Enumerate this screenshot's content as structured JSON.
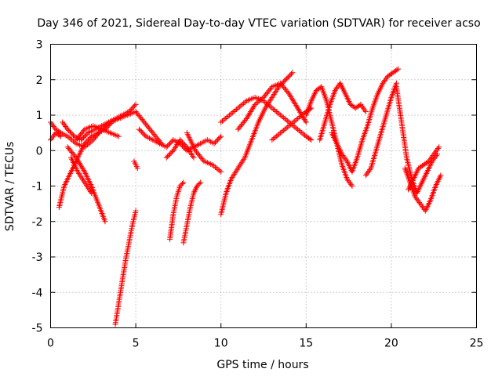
{
  "chart_data": {
    "type": "scatter",
    "title": "Day 346 of 2021, Sidereal Day-to-day VTEC variation (SDTVAR) for receiver acso",
    "xlabel": "GPS time / hours",
    "ylabel": "SDTVAR / TECUs",
    "xlim": [
      0,
      25
    ],
    "ylim": [
      -5,
      3
    ],
    "xticks": [
      "0",
      "5",
      "10",
      "15",
      "20",
      "25"
    ],
    "yticks": [
      "-5",
      "-4",
      "-3",
      "-2",
      "-1",
      "0",
      "1",
      "2",
      "3"
    ],
    "grid": true,
    "marker": "plus",
    "color": "#ff0000",
    "tracks": [
      {
        "x": [
          0.0,
          0.3,
          0.6,
          1.0,
          1.5,
          2.0,
          2.5,
          3.0,
          3.5,
          4.0,
          4.5,
          5.0,
          5.5,
          6.0,
          6.5
        ],
        "y": [
          0.8,
          0.6,
          0.5,
          0.4,
          0.2,
          0.1,
          0.3,
          0.6,
          0.8,
          0.9,
          1.0,
          1.1,
          0.8,
          0.5,
          0.2
        ]
      },
      {
        "x": [
          0.0,
          0.3,
          0.6
        ],
        "y": [
          0.3,
          0.5,
          0.4
        ]
      },
      {
        "x": [
          0.7,
          1.0,
          1.4,
          1.8,
          2.2,
          2.6,
          3.0,
          3.4,
          3.8,
          4.2,
          4.6,
          5.0
        ],
        "y": [
          0.8,
          0.6,
          0.4,
          0.3,
          0.5,
          0.6,
          0.7,
          0.8,
          0.9,
          1.0,
          1.1,
          1.3
        ]
      },
      {
        "x": [
          0.5,
          0.8,
          1.2,
          1.6,
          2.0,
          2.4,
          2.8,
          3.2,
          3.6
        ],
        "y": [
          -1.6,
          -1.0,
          -0.6,
          -0.2,
          0.2,
          0.4,
          0.5,
          0.6,
          0.8
        ]
      },
      {
        "x": [
          1.0,
          1.5,
          2.0,
          2.4,
          2.8,
          3.2
        ],
        "y": [
          0.1,
          -0.2,
          -0.6,
          -1.0,
          -1.5,
          -2.0
        ]
      },
      {
        "x": [
          1.2,
          1.6,
          2.0,
          2.4
        ],
        "y": [
          -0.2,
          -0.6,
          -0.9,
          -1.2
        ]
      },
      {
        "x": [
          1.5,
          2.0,
          2.5,
          3.0,
          3.5,
          4.0
        ],
        "y": [
          0.3,
          0.6,
          0.7,
          0.6,
          0.5,
          0.4
        ]
      },
      {
        "x": [
          3.8,
          4.0,
          4.2,
          4.4,
          4.6,
          4.8,
          5.0
        ],
        "y": [
          -4.9,
          -4.3,
          -3.7,
          -3.1,
          -2.6,
          -2.1,
          -1.7
        ]
      },
      {
        "x": [
          4.9,
          5.0,
          5.1
        ],
        "y": [
          -0.3,
          -0.4,
          -0.5
        ]
      },
      {
        "x": [
          5.2,
          5.6,
          6.0,
          6.4,
          6.8,
          7.2,
          7.6,
          8.0,
          8.4,
          8.8,
          9.2,
          9.6,
          10.0
        ],
        "y": [
          0.6,
          0.4,
          0.3,
          0.2,
          0.1,
          0.3,
          0.2,
          0.0,
          0.1,
          0.2,
          0.3,
          0.2,
          0.4
        ]
      },
      {
        "x": [
          6.8,
          7.2,
          7.6,
          8.0,
          8.4
        ],
        "y": [
          -0.2,
          0.0,
          0.3,
          0.1,
          -0.2
        ]
      },
      {
        "x": [
          7.0,
          7.2,
          7.4,
          7.6,
          7.8
        ],
        "y": [
          -2.5,
          -1.8,
          -1.3,
          -1.0,
          -0.9
        ]
      },
      {
        "x": [
          7.8,
          8.0,
          8.2,
          8.4,
          8.6,
          8.8
        ],
        "y": [
          -2.6,
          -2.1,
          -1.6,
          -1.2,
          -1.0,
          -0.9
        ]
      },
      {
        "x": [
          8.0,
          8.5,
          9.0,
          9.5,
          10.0
        ],
        "y": [
          0.5,
          0.0,
          -0.3,
          -0.4,
          -0.6
        ]
      },
      {
        "x": [
          10.0,
          10.3,
          10.6,
          11.0,
          11.4,
          11.8,
          12.2,
          12.6,
          13.0,
          13.4,
          13.8,
          14.2
        ],
        "y": [
          -1.8,
          -1.2,
          -0.8,
          -0.5,
          -0.2,
          0.3,
          0.8,
          1.2,
          1.5,
          1.8,
          2.0,
          2.2
        ]
      },
      {
        "x": [
          10.0,
          10.5,
          11.0,
          11.5,
          12.0,
          12.5,
          13.0,
          13.5,
          14.0,
          14.5,
          15.0,
          15.3
        ],
        "y": [
          0.8,
          1.0,
          1.2,
          1.4,
          1.5,
          1.4,
          1.2,
          1.0,
          0.8,
          0.6,
          0.4,
          0.3
        ]
      },
      {
        "x": [
          11.0,
          11.5,
          12.0,
          12.5,
          13.0,
          13.5,
          14.0,
          14.5,
          15.0
        ],
        "y": [
          0.6,
          0.9,
          1.3,
          1.5,
          1.8,
          1.9,
          1.6,
          1.2,
          0.8
        ]
      },
      {
        "x": [
          13.0,
          13.5,
          14.0,
          14.5,
          15.0,
          15.3
        ],
        "y": [
          0.3,
          0.5,
          0.7,
          0.9,
          1.1,
          1.2
        ]
      },
      {
        "x": [
          15.0,
          15.3,
          15.6,
          15.9,
          16.2,
          16.5,
          16.8,
          17.1,
          17.4,
          17.7
        ],
        "y": [
          1.0,
          1.4,
          1.7,
          1.8,
          1.4,
          0.8,
          0.2,
          -0.4,
          -0.8,
          -1.0
        ]
      },
      {
        "x": [
          15.8,
          16.1,
          16.4,
          16.7,
          17.0,
          17.3,
          17.6,
          17.9,
          18.2,
          18.5
        ],
        "y": [
          0.3,
          0.8,
          1.3,
          1.7,
          1.9,
          1.6,
          1.3,
          1.2,
          1.3,
          1.1
        ]
      },
      {
        "x": [
          16.5,
          16.8,
          17.1,
          17.4,
          17.7,
          18.0,
          18.3,
          18.6,
          18.9,
          19.2,
          19.5,
          19.8,
          20.1,
          20.4
        ],
        "y": [
          0.5,
          0.2,
          -0.1,
          -0.3,
          -0.6,
          -0.2,
          0.3,
          0.7,
          1.2,
          1.6,
          1.9,
          2.1,
          2.2,
          2.3
        ]
      },
      {
        "x": [
          18.5,
          18.8,
          19.1,
          19.4,
          19.7,
          20.0,
          20.3
        ],
        "y": [
          -0.7,
          -0.5,
          0.0,
          0.5,
          1.0,
          1.5,
          1.9
        ]
      },
      {
        "x": [
          20.3,
          20.6,
          20.9,
          21.2,
          21.5,
          21.8,
          22.1,
          22.4,
          22.7
        ],
        "y": [
          1.8,
          0.8,
          -0.2,
          -0.8,
          -1.2,
          -0.9,
          -0.6,
          -0.3,
          -0.1
        ]
      },
      {
        "x": [
          20.8,
          21.1,
          21.4,
          21.7,
          22.0,
          22.3,
          22.6,
          22.9
        ],
        "y": [
          -0.5,
          -0.9,
          -1.3,
          -1.5,
          -1.7,
          -1.4,
          -1.0,
          -0.7
        ]
      },
      {
        "x": [
          21.0,
          21.3,
          21.6,
          21.9,
          22.2,
          22.5,
          22.8
        ],
        "y": [
          -1.1,
          -0.8,
          -0.5,
          -0.4,
          -0.3,
          -0.1,
          0.1
        ]
      }
    ]
  }
}
